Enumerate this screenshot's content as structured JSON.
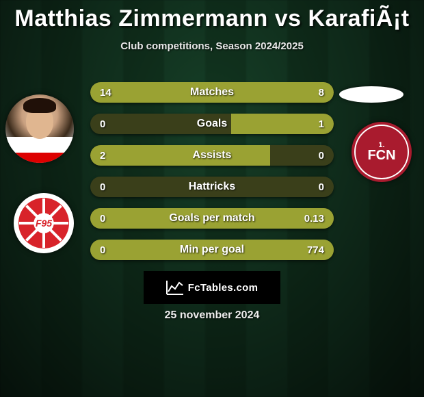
{
  "title": "Matthias Zimmermann vs KarafiÃ¡t",
  "subtitle": "Club competitions, Season 2024/2025",
  "brand": "FcTables.com",
  "date": "25 november 2024",
  "colors": {
    "bar_fill": "#9aa233",
    "bar_track": "#3a3f1a",
    "bg_stripe_a": "#1a4a2e",
    "bg_stripe_b": "#154026",
    "text": "#ffffff",
    "club_left": "#d8232a",
    "club_right": "#a91b2e"
  },
  "rows": [
    {
      "label": "Matches",
      "left": "14",
      "right": "8",
      "left_pct": 63.6,
      "right_pct": 36.4
    },
    {
      "label": "Goals",
      "left": "0",
      "right": "1",
      "left_pct": 0,
      "right_pct": 42
    },
    {
      "label": "Assists",
      "left": "2",
      "right": "0",
      "left_pct": 74,
      "right_pct": 0
    },
    {
      "label": "Hattricks",
      "left": "0",
      "right": "0",
      "left_pct": 0,
      "right_pct": 0
    },
    {
      "label": "Goals per match",
      "left": "0",
      "right": "0.13",
      "left_pct": 0,
      "right_pct": 100,
      "full": true
    },
    {
      "label": "Min per goal",
      "left": "0",
      "right": "774",
      "left_pct": 0,
      "right_pct": 100,
      "full": true
    }
  ]
}
